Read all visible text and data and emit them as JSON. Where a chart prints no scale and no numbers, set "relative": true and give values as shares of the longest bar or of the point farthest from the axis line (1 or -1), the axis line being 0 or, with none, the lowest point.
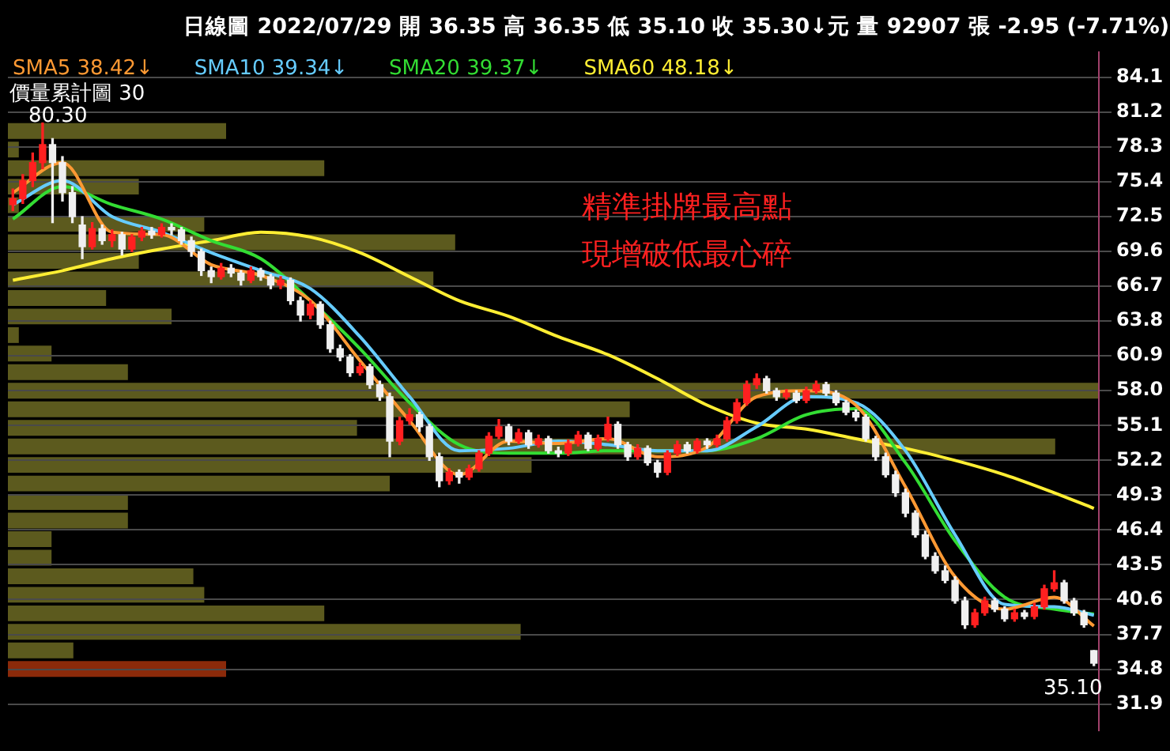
{
  "chart_data": [
    {
      "type": "bar",
      "orientation": "horizontal",
      "relative": true,
      "title": "價量累計圖 30",
      "categories": [
        null,
        null,
        null,
        null,
        null,
        null,
        null,
        null,
        null,
        null,
        null,
        null,
        null,
        null,
        null,
        null,
        null,
        null,
        null,
        null,
        null,
        null,
        null,
        null,
        null,
        null,
        null,
        null,
        null,
        null
      ],
      "values": [
        0.2,
        0.01,
        0.29,
        0.12,
        0.01,
        0.18,
        0.41,
        0.12,
        0.39,
        0.09,
        0.15,
        0.01,
        0.04,
        0.11,
        1,
        0.57,
        0.32,
        0.96,
        0.48,
        0.35,
        0.11,
        0.11,
        0.04,
        0.04,
        0.17,
        0.18,
        0.29,
        0.47,
        0.06,
        0.2
      ],
      "colors": [
        "#5c5a1e",
        "#5c5a1e",
        "#5c5a1e",
        "#5c5a1e",
        "#5c5a1e",
        "#5c5a1e",
        "#5c5a1e",
        "#5c5a1e",
        "#5c5a1e",
        "#5c5a1e",
        "#5c5a1e",
        "#5c5a1e",
        "#5c5a1e",
        "#5c5a1e",
        "#5c5a1e",
        "#5c5a1e",
        "#5c5a1e",
        "#5c5a1e",
        "#5c5a1e",
        "#5c5a1e",
        "#5c5a1e",
        "#5c5a1e",
        "#5c5a1e",
        "#5c5a1e",
        "#5c5a1e",
        "#5c5a1e",
        "#5c5a1e",
        "#5c5a1e",
        "#5c5a1e",
        "#8b2a0a"
      ]
    },
    {
      "type": "candlestick",
      "title": "日線圖 2022/07/29 開 36.35 高 36.35 低 35.10 收 35.30↓元 量 92907 張 -2.95 (-7.71%)",
      "categories": [
        null,
        null,
        null,
        null,
        null,
        null,
        null,
        null,
        null,
        null,
        null,
        null,
        null,
        null,
        null,
        null,
        null,
        null,
        null,
        null,
        null,
        null,
        null,
        null,
        null,
        null,
        null,
        null,
        null,
        null,
        null,
        null,
        null,
        null,
        null,
        null,
        null,
        null,
        null,
        null,
        null,
        null,
        null,
        null,
        null,
        null,
        null,
        null,
        null,
        null,
        null,
        null,
        null,
        null,
        null,
        null,
        null,
        null,
        null,
        null,
        null,
        null,
        null,
        null,
        null,
        null,
        null,
        null,
        null,
        null,
        null,
        null,
        null,
        null,
        null,
        null,
        null,
        null,
        null,
        null,
        null,
        null,
        null,
        null,
        null,
        null,
        null,
        null,
        null,
        null,
        null,
        null,
        null,
        null,
        null,
        null,
        null,
        null,
        null,
        null,
        null,
        null,
        null,
        null,
        null,
        null,
        null,
        null,
        null,
        null
      ],
      "ohlc": [
        [
          73.5,
          74.8,
          73.0,
          74.0
        ],
        [
          74.0,
          76.0,
          73.6,
          75.5
        ],
        [
          75.5,
          77.8,
          75.0,
          77.0
        ],
        [
          77.0,
          80.3,
          76.5,
          78.5
        ],
        [
          78.5,
          79.0,
          72.0,
          77.0
        ],
        [
          77.0,
          77.5,
          73.8,
          74.5
        ],
        [
          74.5,
          75.0,
          72.0,
          72.5
        ],
        [
          71.8,
          72.5,
          69.0,
          70.0
        ],
        [
          70.0,
          72.0,
          69.8,
          71.5
        ],
        [
          71.5,
          71.8,
          70.2,
          70.5
        ],
        [
          70.5,
          71.4,
          70.0,
          71.0
        ],
        [
          71.0,
          71.2,
          69.3,
          69.8
        ],
        [
          69.8,
          71.0,
          69.6,
          70.8
        ],
        [
          70.8,
          71.6,
          70.5,
          71.3
        ],
        [
          71.3,
          71.6,
          70.7,
          71.0
        ],
        [
          71.0,
          71.9,
          70.8,
          71.6
        ],
        [
          71.6,
          71.9,
          71.0,
          71.4
        ],
        [
          71.4,
          71.6,
          70.2,
          70.5
        ],
        [
          70.5,
          70.8,
          69.2,
          69.6
        ],
        [
          69.6,
          69.8,
          67.6,
          68.0
        ],
        [
          68.0,
          68.3,
          67.0,
          67.5
        ],
        [
          67.5,
          68.6,
          67.3,
          68.2
        ],
        [
          68.2,
          68.5,
          67.5,
          67.8
        ],
        [
          67.8,
          68.0,
          66.8,
          67.2
        ],
        [
          67.2,
          68.3,
          67.0,
          68.0
        ],
        [
          68.0,
          68.2,
          67.2,
          67.5
        ],
        [
          67.5,
          67.7,
          66.5,
          66.8
        ],
        [
          66.8,
          67.5,
          66.5,
          67.2
        ],
        [
          67.2,
          67.4,
          65.2,
          65.5
        ],
        [
          65.5,
          65.8,
          63.8,
          64.3
        ],
        [
          64.3,
          65.5,
          64.0,
          65.2
        ],
        [
          65.2,
          65.4,
          63.2,
          63.5
        ],
        [
          63.5,
          63.8,
          61.2,
          61.5
        ],
        [
          61.5,
          61.8,
          60.5,
          60.8
        ],
        [
          60.8,
          61.0,
          59.2,
          59.5
        ],
        [
          59.5,
          60.3,
          59.3,
          60.0
        ],
        [
          60.0,
          60.2,
          58.2,
          58.5
        ],
        [
          58.5,
          58.8,
          57.2,
          57.5
        ],
        [
          57.5,
          57.8,
          52.5,
          53.8
        ],
        [
          53.8,
          55.8,
          53.5,
          55.5
        ],
        [
          55.5,
          56.5,
          55.2,
          56.0
        ],
        [
          56.0,
          56.2,
          54.6,
          55.0
        ],
        [
          55.0,
          55.2,
          52.2,
          52.5
        ],
        [
          52.5,
          52.8,
          50.0,
          50.5
        ],
        [
          50.5,
          51.5,
          50.2,
          51.2
        ],
        [
          51.2,
          51.4,
          50.3,
          50.8
        ],
        [
          50.8,
          51.8,
          50.6,
          51.5
        ],
        [
          51.5,
          53.0,
          51.3,
          52.8
        ],
        [
          52.8,
          54.5,
          52.6,
          54.2
        ],
        [
          54.2,
          55.6,
          54.0,
          55.0
        ],
        [
          55.0,
          55.2,
          53.5,
          53.8
        ],
        [
          53.8,
          54.8,
          53.6,
          54.5
        ],
        [
          54.5,
          54.7,
          53.2,
          53.5
        ],
        [
          53.5,
          54.3,
          53.3,
          54.0
        ],
        [
          54.0,
          54.2,
          52.8,
          53.0
        ],
        [
          53.0,
          53.3,
          52.5,
          52.8
        ],
        [
          52.8,
          53.9,
          52.6,
          53.6
        ],
        [
          53.6,
          54.6,
          53.4,
          54.3
        ],
        [
          54.3,
          54.5,
          53.0,
          53.2
        ],
        [
          53.2,
          54.3,
          53.0,
          54.0
        ],
        [
          54.0,
          55.8,
          53.8,
          55.2
        ],
        [
          55.2,
          55.4,
          53.2,
          53.5
        ],
        [
          53.5,
          53.7,
          52.2,
          52.5
        ],
        [
          52.5,
          53.5,
          52.3,
          53.2
        ],
        [
          53.2,
          53.4,
          51.8,
          52.0
        ],
        [
          52.0,
          52.2,
          50.8,
          51.2
        ],
        [
          51.2,
          53.0,
          51.0,
          52.8
        ],
        [
          52.8,
          53.8,
          52.6,
          53.5
        ],
        [
          53.5,
          53.7,
          52.8,
          53.0
        ],
        [
          53.0,
          54.0,
          52.8,
          53.8
        ],
        [
          53.8,
          54.0,
          53.2,
          53.5
        ],
        [
          53.5,
          54.3,
          53.3,
          54.0
        ],
        [
          54.0,
          55.8,
          53.8,
          55.5
        ],
        [
          55.5,
          57.3,
          55.3,
          57.0
        ],
        [
          57.0,
          58.8,
          56.8,
          58.5
        ],
        [
          58.5,
          59.4,
          58.2,
          59.0
        ],
        [
          59.0,
          59.2,
          57.8,
          58.0
        ],
        [
          58.0,
          58.2,
          57.2,
          57.5
        ],
        [
          57.5,
          58.1,
          57.3,
          57.8
        ],
        [
          57.8,
          58.0,
          57.0,
          57.2
        ],
        [
          57.2,
          58.3,
          57.0,
          58.0
        ],
        [
          58.0,
          58.8,
          57.8,
          58.5
        ],
        [
          58.5,
          58.7,
          57.6,
          57.8
        ],
        [
          57.8,
          58.0,
          56.8,
          57.0
        ],
        [
          57.0,
          57.2,
          56.0,
          56.2
        ],
        [
          56.2,
          56.4,
          55.5,
          55.8
        ],
        [
          55.8,
          56.0,
          53.8,
          54.0
        ],
        [
          54.0,
          54.2,
          52.2,
          52.5
        ],
        [
          52.5,
          52.8,
          50.8,
          51.0
        ],
        [
          51.0,
          51.3,
          49.2,
          49.5
        ],
        [
          49.5,
          49.8,
          47.5,
          47.8
        ],
        [
          47.8,
          48.0,
          45.8,
          46.0
        ],
        [
          46.0,
          46.3,
          44.0,
          44.2
        ],
        [
          44.2,
          44.5,
          42.8,
          43.0
        ],
        [
          43.0,
          43.4,
          42.0,
          42.2
        ],
        [
          42.2,
          42.5,
          40.3,
          40.5
        ],
        [
          40.5,
          40.8,
          38.2,
          38.5
        ],
        [
          38.5,
          39.8,
          38.3,
          39.5
        ],
        [
          39.5,
          40.8,
          39.3,
          40.5
        ],
        [
          40.5,
          40.7,
          39.6,
          39.8
        ],
        [
          39.8,
          40.0,
          38.8,
          39.0
        ],
        [
          39.0,
          39.8,
          38.8,
          39.5
        ],
        [
          39.5,
          39.7,
          39.0,
          39.2
        ],
        [
          39.2,
          40.3,
          39.0,
          40.0
        ],
        [
          40.0,
          41.8,
          39.8,
          41.5
        ],
        [
          41.5,
          43.0,
          41.3,
          42.0
        ],
        [
          42.0,
          42.2,
          40.3,
          40.5
        ],
        [
          40.5,
          40.7,
          39.3,
          39.5
        ],
        [
          39.5,
          39.7,
          38.3,
          38.5
        ],
        [
          36.35,
          36.35,
          35.1,
          35.3
        ]
      ],
      "colors": [
        "#ff2020",
        "#ff2020",
        "#ff2020",
        "#ff2020",
        "#f0f0f0",
        "#f0f0f0",
        "#f0f0f0",
        "#f0f0f0",
        "#ff2020",
        "#f0f0f0",
        "#ff2020",
        "#f0f0f0",
        "#ff2020",
        "#ff2020",
        "#f0f0f0",
        "#ff2020",
        "#f0f0f0",
        "#f0f0f0",
        "#f0f0f0",
        "#f0f0f0",
        "#f0f0f0",
        "#ff2020",
        "#f0f0f0",
        "#f0f0f0",
        "#ff2020",
        "#f0f0f0",
        "#f0f0f0",
        "#ff2020",
        "#f0f0f0",
        "#f0f0f0",
        "#ff2020",
        "#f0f0f0",
        "#f0f0f0",
        "#f0f0f0",
        "#f0f0f0",
        "#ff2020",
        "#f0f0f0",
        "#f0f0f0",
        "#f0f0f0",
        "#ff2020",
        "#ff2020",
        "#f0f0f0",
        "#f0f0f0",
        "#f0f0f0",
        "#ff2020",
        "#f0f0f0",
        "#ff2020",
        "#ff2020",
        "#ff2020",
        "#ff2020",
        "#f0f0f0",
        "#ff2020",
        "#f0f0f0",
        "#ff2020",
        "#f0f0f0",
        "#f0f0f0",
        "#ff2020",
        "#ff2020",
        "#f0f0f0",
        "#ff2020",
        "#ff2020",
        "#f0f0f0",
        "#f0f0f0",
        "#ff2020",
        "#f0f0f0",
        "#f0f0f0",
        "#ff2020",
        "#ff2020",
        "#f0f0f0",
        "#ff2020",
        "#f0f0f0",
        "#ff2020",
        "#ff2020",
        "#ff2020",
        "#ff2020",
        "#ff2020",
        "#f0f0f0",
        "#f0f0f0",
        "#ff2020",
        "#f0f0f0",
        "#ff2020",
        "#ff2020",
        "#f0f0f0",
        "#f0f0f0",
        "#f0f0f0",
        "#f0f0f0",
        "#f0f0f0",
        "#f0f0f0",
        "#f0f0f0",
        "#f0f0f0",
        "#f0f0f0",
        "#f0f0f0",
        "#f0f0f0",
        "#f0f0f0",
        "#f0f0f0",
        "#f0f0f0",
        "#f0f0f0",
        "#ff2020",
        "#ff2020",
        "#f0f0f0",
        "#f0f0f0",
        "#ff2020",
        "#f0f0f0",
        "#ff2020",
        "#ff2020",
        "#ff2020",
        "#f0f0f0",
        "#f0f0f0",
        "#f0f0f0",
        "#f0f0f0"
      ],
      "series": [
        {
          "type": "line",
          "name": "SMA5 38.42↓",
          "color": "#ff9933",
          "values": [
            74.5,
            null,
            null,
            null,
            null,
            77.0,
            null,
            null,
            null,
            null,
            71.2,
            null,
            null,
            null,
            null,
            71.0,
            null,
            null,
            null,
            null,
            68.5,
            null,
            null,
            null,
            null,
            67.6,
            null,
            null,
            null,
            null,
            65.5,
            null,
            null,
            null,
            null,
            60.5,
            null,
            null,
            null,
            null,
            55.5,
            null,
            null,
            null,
            null,
            51.0,
            null,
            null,
            null,
            null,
            53.8,
            null,
            null,
            null,
            null,
            53.6,
            null,
            null,
            null,
            null,
            54.0,
            null,
            null,
            null,
            null,
            52.5,
            null,
            null,
            null,
            null,
            53.3,
            null,
            null,
            null,
            null,
            57.5,
            null,
            null,
            null,
            null,
            58.0,
            null,
            null,
            null,
            null,
            56.8,
            null,
            null,
            null,
            null,
            50.0,
            null,
            null,
            null,
            null,
            42.5,
            null,
            null,
            null,
            null,
            39.8,
            null,
            null,
            null,
            null,
            40.8,
            null,
            null,
            null,
            38.4
          ]
        },
        {
          "type": "line",
          "name": "SMA10 39.34↓",
          "color": "#66ccff",
          "values": [
            73.5,
            null,
            null,
            null,
            null,
            75.5,
            null,
            null,
            null,
            null,
            72.5,
            null,
            null,
            null,
            null,
            71.2,
            null,
            null,
            null,
            null,
            69.5,
            null,
            null,
            null,
            null,
            68.0,
            null,
            null,
            null,
            null,
            66.5,
            null,
            null,
            null,
            null,
            62.5,
            null,
            null,
            null,
            null,
            57.5,
            null,
            null,
            null,
            null,
            53.0,
            null,
            null,
            null,
            null,
            53.2,
            null,
            null,
            null,
            null,
            53.8,
            null,
            null,
            null,
            null,
            53.5,
            null,
            null,
            null,
            null,
            53.0,
            null,
            null,
            null,
            null,
            53.0,
            null,
            null,
            null,
            null,
            55.0,
            null,
            null,
            null,
            null,
            57.5,
            null,
            null,
            null,
            null,
            57.0,
            null,
            null,
            null,
            null,
            53.0,
            null,
            null,
            null,
            null,
            46.0,
            null,
            null,
            null,
            null,
            40.2,
            null,
            null,
            null,
            null,
            40.0,
            null,
            null,
            null,
            39.3
          ]
        },
        {
          "type": "line",
          "name": "SMA20 39.37↓",
          "color": "#33dd33",
          "values": [
            72.3,
            null,
            null,
            null,
            null,
            75.0,
            null,
            null,
            null,
            null,
            73.5,
            null,
            null,
            null,
            null,
            72.3,
            null,
            null,
            null,
            null,
            70.5,
            null,
            null,
            null,
            null,
            69.0,
            null,
            null,
            null,
            null,
            65.5,
            null,
            null,
            null,
            null,
            61.5,
            null,
            null,
            null,
            null,
            57.0,
            null,
            null,
            null,
            null,
            53.5,
            null,
            null,
            null,
            null,
            52.8,
            null,
            null,
            null,
            null,
            52.8,
            null,
            null,
            null,
            null,
            53.0,
            null,
            null,
            null,
            null,
            53.0,
            null,
            null,
            null,
            null,
            53.0,
            null,
            null,
            null,
            null,
            54.0,
            null,
            null,
            null,
            null,
            56.0,
            null,
            null,
            null,
            null,
            56.5,
            null,
            null,
            null,
            null,
            52.0,
            null,
            null,
            null,
            null,
            45.5,
            null,
            null,
            null,
            null,
            40.8,
            null,
            null,
            null,
            null,
            39.8,
            null,
            null,
            null,
            39.4
          ]
        },
        {
          "type": "line",
          "name": "SMA60 48.18↓",
          "color": "#ffee33",
          "values": [
            67.2,
            null,
            null,
            null,
            null,
            68.0,
            null,
            null,
            null,
            null,
            69.0,
            null,
            null,
            null,
            null,
            69.8,
            null,
            null,
            null,
            null,
            70.5,
            null,
            null,
            null,
            null,
            71.2,
            null,
            null,
            null,
            null,
            70.8,
            null,
            null,
            null,
            null,
            69.5,
            null,
            null,
            null,
            null,
            67.5,
            null,
            null,
            null,
            null,
            65.5,
            null,
            null,
            null,
            null,
            64.2,
            null,
            null,
            null,
            null,
            62.5,
            null,
            null,
            null,
            null,
            61.0,
            null,
            null,
            null,
            null,
            59.0,
            null,
            null,
            null,
            null,
            56.8,
            null,
            null,
            null,
            null,
            55.3,
            null,
            null,
            null,
            null,
            54.8,
            null,
            null,
            null,
            null,
            54.0,
            null,
            null,
            null,
            null,
            53.2,
            null,
            null,
            null,
            null,
            52.2,
            null,
            null,
            null,
            null,
            51.0,
            null,
            null,
            null,
            null,
            49.5,
            null,
            null,
            null,
            48.2
          ]
        }
      ],
      "ylim": [
        29.7,
        86.2
      ],
      "yticks": [
        31.9,
        34.8,
        37.7,
        40.6,
        43.5,
        46.4,
        49.3,
        52.2,
        55.1,
        {
          "value": 58,
          "label": "58.0"
        },
        60.9,
        63.8,
        66.7,
        69.6,
        72.5,
        75.4,
        78.3,
        81.2,
        84.1
      ],
      "grid": "y",
      "legend": "top left",
      "marker": "none",
      "tick_labels": "y",
      "annotations": [
        "80.30",
        "35.10",
        "精準掛牌最高點",
        "現增破低最心碎"
      ]
    }
  ]
}
